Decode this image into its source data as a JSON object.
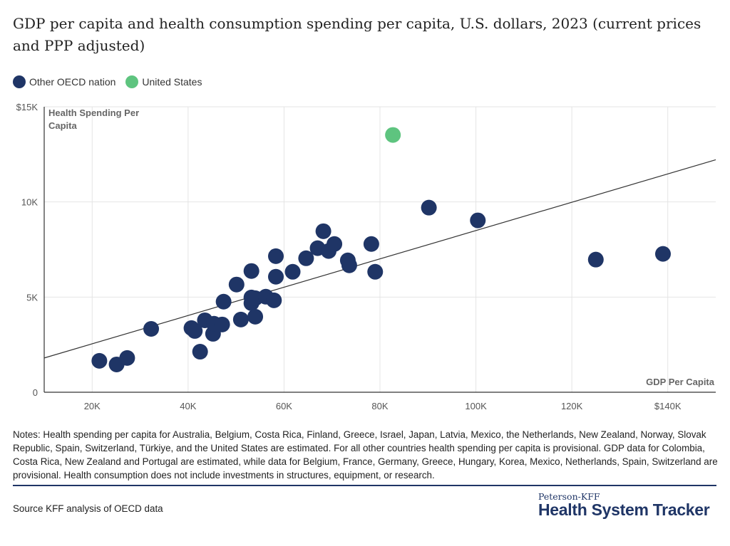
{
  "title": "GDP per capita and health consumption spending per capita, U.S. dollars, 2023 (current prices and PPP adjusted)",
  "legend": [
    {
      "label": "Other OECD nation",
      "color": "#1f3566"
    },
    {
      "label": "United States",
      "color": "#5ec47f"
    }
  ],
  "chart_data": {
    "type": "scatter",
    "xlabel": "GDP Per Capita",
    "ylabel": "Health Spending Per Capita",
    "xlim": [
      10000,
      150000
    ],
    "ylim": [
      0,
      15000
    ],
    "x_ticks": [
      {
        "v": 20000,
        "label": "20K"
      },
      {
        "v": 40000,
        "label": "40K"
      },
      {
        "v": 60000,
        "label": "60K"
      },
      {
        "v": 80000,
        "label": "80K"
      },
      {
        "v": 100000,
        "label": "100K"
      },
      {
        "v": 120000,
        "label": "120K"
      },
      {
        "v": 140000,
        "label": "$140K"
      }
    ],
    "y_ticks": [
      {
        "v": 0,
        "label": "0"
      },
      {
        "v": 5000,
        "label": "5K"
      },
      {
        "v": 10000,
        "label": "10K"
      },
      {
        "v": 15000,
        "label": "$15K"
      }
    ],
    "grid": true,
    "trendline": {
      "slope": 0.0744,
      "intercept": 1056
    },
    "series": [
      {
        "name": "Other OECD nation",
        "color": "#1f3566",
        "points": [
          [
            21500,
            1650
          ],
          [
            25100,
            1460
          ],
          [
            27300,
            1800
          ],
          [
            32300,
            3330
          ],
          [
            40700,
            3370
          ],
          [
            41400,
            3220
          ],
          [
            43500,
            3780
          ],
          [
            42500,
            2130
          ],
          [
            45200,
            3070
          ],
          [
            45400,
            3600
          ],
          [
            47100,
            3560
          ],
          [
            47400,
            4760
          ],
          [
            50100,
            5660
          ],
          [
            51000,
            3820
          ],
          [
            53200,
            6370
          ],
          [
            53200,
            4980
          ],
          [
            53200,
            4680
          ],
          [
            54000,
            4940
          ],
          [
            54000,
            3970
          ],
          [
            56200,
            5020
          ],
          [
            57900,
            4830
          ],
          [
            58300,
            7150
          ],
          [
            58300,
            6070
          ],
          [
            61800,
            6330
          ],
          [
            64600,
            7040
          ],
          [
            67000,
            7570
          ],
          [
            68200,
            8460
          ],
          [
            69300,
            7420
          ],
          [
            70500,
            7790
          ],
          [
            73300,
            6930
          ],
          [
            73600,
            6670
          ],
          [
            78200,
            7790
          ],
          [
            79000,
            6330
          ],
          [
            90200,
            9700
          ],
          [
            100400,
            9030
          ],
          [
            125000,
            6970
          ],
          [
            139000,
            7270
          ]
        ]
      },
      {
        "name": "United States",
        "color": "#5ec47f",
        "points": [
          [
            82700,
            13520
          ]
        ]
      }
    ]
  },
  "notes": "Notes: Health spending per capita for Australia, Belgium, Costa Rica, Finland, Greece, Israel, Japan, Latvia, Mexico, the Netherlands, New Zealand, Norway, Slovak Republic, Spain, Switzerland, Türkiye, and the United States are estimated. For all other countries health spending per capita is provisional. GDP data for Colombia, Costa Rica, New Zealand and Portugal are estimated, while data for Belgium, France, Germany, Greece, Hungary, Korea, Mexico, Netherlands, Spain, Switzerland are provisional. Health consumption does not include investments in structures, equipment, or research.",
  "source": "Source KFF analysis of OECD data",
  "logo": {
    "small": "Peterson-KFF",
    "big": "Health System Tracker"
  }
}
